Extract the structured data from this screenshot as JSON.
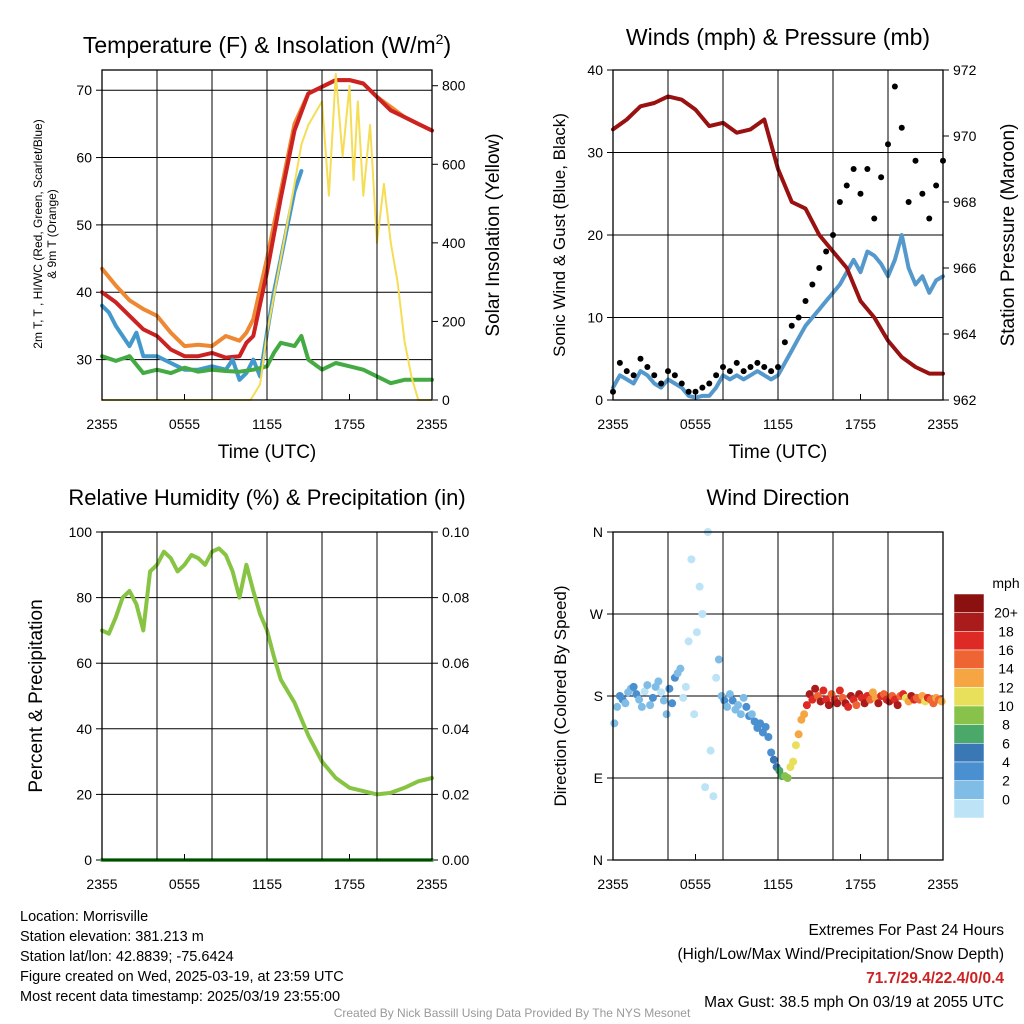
{
  "panels": {
    "temp": {
      "title": "Temperature (F) & Insolation (W/m",
      "title_sup": "2",
      "title_end": ")",
      "ylabel_line1": "2m T, T  , HI/WC (Red, Green, Scarlet/Blue)",
      "ylabel_line1_sub": "d",
      "ylabel_line2": "& 9m T (Orange)",
      "y2label": "Solar Insolation (Yellow)",
      "xlabel": "Time (UTC)"
    },
    "wind": {
      "title": "Winds (mph) & Pressure (mb)",
      "ylabel": "Sonic Wind & Gust (Blue, Black)",
      "y2label": "Station Pressure (Maroon)",
      "xlabel": "Time (UTC)"
    },
    "rh": {
      "title": "Relative Humidity (%) & Precipitation (in)",
      "ylabel": "Percent & Precipitation"
    },
    "dir": {
      "title": "Wind Direction",
      "ylabel": "Direction (Colored By Speed)",
      "legend_title": "mph"
    }
  },
  "chart_data": [
    {
      "id": "temp",
      "type": "line",
      "x_ticks": [
        "2355",
        "0555",
        "1155",
        "1755",
        "2355"
      ],
      "xlim": [
        0,
        24
      ],
      "ylim": [
        24,
        73
      ],
      "y_ticks": [
        30,
        40,
        50,
        60,
        70
      ],
      "y2lim": [
        0,
        840
      ],
      "y2_ticks": [
        0,
        200,
        400,
        600,
        800
      ],
      "series": [
        {
          "color": "#ee8833",
          "axis": "y",
          "x": [
            0,
            1,
            2,
            3,
            4,
            5,
            6,
            7,
            8,
            9,
            10,
            10.5,
            11,
            12,
            13,
            14,
            15,
            16,
            17,
            18,
            19,
            20,
            21,
            22,
            23,
            24
          ],
          "y": [
            43.5,
            41,
            38.8,
            37.5,
            36.5,
            34,
            32,
            32.2,
            32,
            33.5,
            32.8,
            34,
            36,
            45,
            55,
            65,
            69.5,
            70.5,
            71.5,
            71.5,
            71,
            69,
            67.5,
            66,
            65,
            64
          ]
        },
        {
          "color": "#cc2222",
          "axis": "y",
          "x": [
            0,
            1,
            2,
            3,
            4,
            5,
            6,
            7,
            8,
            9,
            10,
            10.5,
            11,
            12,
            13,
            14,
            15,
            16,
            17,
            18,
            19,
            20,
            21,
            22,
            23,
            24
          ],
          "y": [
            40,
            38.5,
            36.5,
            34.5,
            33.5,
            31.5,
            30.5,
            30.5,
            31,
            30.3,
            30.5,
            32.5,
            33.5,
            43,
            54,
            64,
            69.5,
            70.5,
            71.5,
            71.5,
            71,
            69,
            67,
            66,
            65,
            64
          ]
        },
        {
          "color": "#4499cc",
          "axis": "y",
          "x": [
            0,
            0.5,
            1,
            2,
            2.5,
            3,
            4,
            5,
            6,
            7,
            8,
            9,
            9.5,
            10,
            10.5,
            11,
            11.5,
            12,
            12.5,
            13,
            13.5,
            14,
            14.5
          ],
          "y": [
            38,
            37,
            35,
            32,
            34,
            30.5,
            30.5,
            29.5,
            28.5,
            28.5,
            29,
            28.5,
            30,
            27,
            28,
            30,
            27.5,
            34,
            40,
            45,
            50,
            55,
            58
          ]
        },
        {
          "color": "#44aa44",
          "axis": "y",
          "x": [
            0,
            1,
            2,
            3,
            4,
            5,
            6,
            7,
            8,
            9,
            10,
            11,
            12,
            12.5,
            13,
            14,
            14.5,
            15,
            16,
            17,
            18,
            19,
            20,
            21,
            22,
            23,
            24
          ],
          "y": [
            30.5,
            29.8,
            30.5,
            28,
            28.5,
            28,
            28.8,
            28.2,
            28.5,
            28.3,
            28.2,
            28.5,
            29,
            31,
            32.5,
            32,
            33.5,
            30,
            28.5,
            29.5,
            29,
            28.5,
            27.5,
            26.5,
            27,
            27,
            27
          ]
        },
        {
          "color": "#f5dd55",
          "axis": "y2",
          "x": [
            0,
            10.8,
            11.5,
            12,
            13,
            14,
            14.5,
            15,
            16,
            16.5,
            17,
            17.5,
            18,
            18.3,
            18.6,
            19,
            19.5,
            20,
            20.5,
            21,
            21.5,
            22,
            22.5,
            23,
            24
          ],
          "y": [
            0,
            0,
            40,
            170,
            360,
            550,
            650,
            700,
            760,
            520,
            830,
            620,
            800,
            560,
            760,
            520,
            700,
            400,
            550,
            400,
            300,
            150,
            60,
            0,
            0
          ]
        }
      ]
    },
    {
      "id": "wind",
      "type": "line",
      "x_ticks": [
        "2355",
        "0555",
        "1155",
        "1755",
        "2355"
      ],
      "xlim": [
        0,
        24
      ],
      "ylim": [
        0,
        40
      ],
      "y_ticks": [
        0,
        10,
        20,
        30,
        40
      ],
      "y2lim": [
        962,
        972
      ],
      "y2_ticks": [
        962,
        964,
        966,
        968,
        970,
        972
      ],
      "series": [
        {
          "color": "#5599cc",
          "axis": "y",
          "x": [
            0,
            0.5,
            1,
            1.5,
            2,
            2.5,
            3,
            3.5,
            4,
            4.5,
            5,
            5.5,
            6,
            6.5,
            7,
            7.5,
            8,
            8.5,
            9,
            9.5,
            10,
            10.5,
            11,
            11.5,
            12,
            12.5,
            13,
            13.5,
            14,
            14.5,
            15,
            15.5,
            16,
            16.5,
            17,
            17.5,
            18,
            18.5,
            19,
            19.5,
            20,
            20.5,
            21,
            21.5,
            22,
            22.5,
            23,
            23.5,
            24
          ],
          "y": [
            1.5,
            3,
            2.5,
            2,
            3.5,
            3,
            2,
            1.5,
            2.5,
            2,
            1.5,
            0.5,
            0.3,
            0.5,
            0.5,
            1.5,
            3,
            2.5,
            3,
            2.5,
            3,
            3.5,
            3,
            2.5,
            3,
            4.5,
            6,
            7.5,
            9,
            10,
            11,
            12,
            13,
            14,
            15.5,
            17,
            15.5,
            18,
            17.5,
            16.5,
            15,
            17,
            20,
            16,
            14,
            15,
            13,
            14.5,
            15
          ]
        },
        {
          "color": "#000000",
          "axis": "y",
          "marker": "dot",
          "x": [
            0,
            0.5,
            1,
            1.5,
            2,
            2.5,
            3,
            3.5,
            4,
            4.5,
            5,
            5.5,
            6,
            6.5,
            7,
            7.5,
            8,
            8.5,
            9,
            9.5,
            10,
            10.5,
            11,
            11.5,
            12,
            12.5,
            13,
            13.5,
            14,
            14.5,
            15,
            15.5,
            16,
            16.5,
            17,
            17.5,
            18,
            18.5,
            19,
            19.5,
            20,
            20.5,
            21,
            21.5,
            22,
            22.5,
            23,
            23.5,
            24
          ],
          "y": [
            1,
            4.5,
            3.5,
            3,
            5,
            4,
            3,
            2,
            3.5,
            3,
            2,
            1,
            1,
            1.5,
            2,
            3,
            4,
            3.5,
            4.5,
            3.5,
            4,
            4.5,
            4,
            3.5,
            4,
            7,
            9,
            10,
            12,
            14,
            16,
            18,
            20,
            24,
            26,
            28,
            25,
            28,
            22,
            27,
            31,
            38,
            33,
            24,
            29,
            25,
            22,
            26,
            29
          ]
        },
        {
          "color": "#991111",
          "axis": "y2",
          "x": [
            0,
            1,
            2,
            3,
            4,
            5,
            6,
            7,
            8,
            9,
            10,
            11,
            12,
            13,
            14,
            15,
            16,
            17,
            18,
            19,
            20,
            21,
            22,
            23,
            24
          ],
          "y": [
            970.2,
            970.5,
            970.9,
            971,
            971.2,
            971.1,
            970.8,
            970.3,
            970.4,
            970.1,
            970.2,
            970.5,
            969,
            968,
            967.8,
            967,
            966.5,
            966,
            965,
            964.5,
            963.8,
            963.3,
            963,
            962.8,
            962.8
          ]
        }
      ]
    },
    {
      "id": "rh",
      "type": "line",
      "x_ticks": [
        "2355",
        "0555",
        "1155",
        "1755",
        "2355"
      ],
      "xlim": [
        0,
        24
      ],
      "ylim": [
        0,
        100
      ],
      "y_ticks": [
        0,
        20,
        40,
        60,
        80,
        100
      ],
      "y2lim": [
        0,
        0.1
      ],
      "y2_ticks": [
        "0.00",
        "0.02",
        "0.04",
        "0.06",
        "0.08",
        "0.10"
      ],
      "series": [
        {
          "color": "#88c444",
          "axis": "y",
          "x": [
            0,
            0.5,
            1,
            1.5,
            2,
            2.5,
            3,
            3.5,
            4,
            4.5,
            5,
            5.5,
            6,
            6.5,
            7,
            7.5,
            8,
            8.5,
            9,
            9.5,
            10,
            10.5,
            11,
            11.5,
            12,
            12.5,
            13,
            14,
            15,
            16,
            17,
            18,
            19,
            20,
            21,
            22,
            23,
            24
          ],
          "y": [
            70,
            69,
            74,
            80,
            82,
            78,
            70,
            88,
            90,
            94,
            92,
            88,
            90,
            93,
            92,
            90,
            94,
            95,
            93,
            88,
            80,
            90,
            82,
            75,
            70,
            62,
            55,
            48,
            38,
            30,
            25,
            22,
            21,
            20,
            20.5,
            22,
            24,
            25
          ]
        },
        {
          "color": "#44aa44",
          "axis": "y",
          "x": [
            0,
            24
          ],
          "y": [
            0,
            0
          ]
        }
      ]
    },
    {
      "id": "dir",
      "type": "scatter",
      "x_ticks": [
        "2355",
        "0555",
        "1155",
        "1755",
        "2355"
      ],
      "xlim": [
        0,
        24
      ],
      "ylim": [
        0,
        360
      ],
      "y_ticks": [
        "N",
        "E",
        "S",
        "W",
        "N"
      ],
      "color_scale": {
        "labels": [
          "0",
          "2",
          "4",
          "6",
          "8",
          "10",
          "12",
          "14",
          "16",
          "18",
          "20+"
        ],
        "colors": [
          "#bde3f7",
          "#7fbde6",
          "#4a8fcf",
          "#3a78b5",
          "#4aa868",
          "#88c24a",
          "#e8e05a",
          "#f5a642",
          "#ee6433",
          "#dd2a25",
          "#aa1b1b",
          "#8b1010"
        ]
      },
      "x": [
        0.1,
        0.3,
        0.5,
        0.7,
        0.9,
        1.1,
        1.3,
        1.5,
        1.7,
        1.9,
        2.1,
        2.3,
        2.5,
        2.7,
        2.9,
        3.1,
        3.3,
        3.5,
        3.7,
        3.9,
        4.1,
        4.3,
        4.5,
        4.7,
        4.9,
        5.1,
        5.3,
        5.5,
        5.7,
        5.9,
        6.1,
        6.3,
        6.5,
        6.7,
        6.9,
        7.1,
        7.3,
        7.5,
        7.7,
        7.9,
        8.1,
        8.3,
        8.5,
        8.7,
        8.9,
        9.1,
        9.3,
        9.5,
        9.7,
        9.9,
        10.1,
        10.3,
        10.5,
        10.7,
        10.9,
        11.1,
        11.3,
        11.5,
        11.7,
        11.9,
        12.1,
        12.3,
        12.5,
        12.7,
        12.9,
        13.1,
        13.3,
        13.5,
        13.7,
        13.9,
        14.1,
        14.3,
        14.5,
        14.7,
        14.9,
        15.1,
        15.3,
        15.5,
        15.7,
        15.9,
        16.1,
        16.3,
        16.5,
        16.7,
        16.9,
        17.1,
        17.3,
        17.5,
        17.7,
        17.9,
        18.1,
        18.3,
        18.5,
        18.7,
        18.9,
        19.1,
        19.3,
        19.5,
        19.7,
        19.9,
        20.1,
        20.3,
        20.5,
        20.7,
        20.9,
        21.1,
        21.3,
        21.5,
        21.7,
        21.9,
        22.1,
        22.3,
        22.5,
        22.7,
        22.9,
        23.1,
        23.3,
        23.5,
        23.7,
        23.9
      ],
      "y": [
        150,
        168,
        180,
        176,
        172,
        184,
        188,
        190,
        182,
        176,
        168,
        185,
        192,
        170,
        178,
        190,
        196,
        184,
        175,
        160,
        188,
        172,
        200,
        205,
        210,
        178,
        190,
        240,
        330,
        160,
        250,
        300,
        270,
        80,
        360,
        120,
        70,
        200,
        220,
        180,
        175,
        168,
        182,
        175,
        165,
        170,
        160,
        178,
        168,
        158,
        160,
        152,
        145,
        150,
        140,
        146,
        135,
        118,
        110,
        102,
        98,
        92,
        92,
        90,
        102,
        108,
        126,
        138,
        154,
        160,
        170,
        182,
        176,
        188,
        180,
        174,
        186,
        176,
        170,
        182,
        176,
        172,
        186,
        178,
        172,
        168,
        180,
        176,
        170,
        182,
        178,
        172,
        180,
        176,
        184,
        178,
        172,
        180,
        182,
        176,
        174,
        180,
        176,
        170,
        180,
        182,
        178,
        174,
        180,
        176,
        178,
        176,
        180,
        174,
        178,
        176,
        172,
        178,
        176,
        174
      ],
      "speed": [
        2,
        3,
        4,
        4,
        3,
        2,
        3,
        4,
        5,
        3,
        2,
        1,
        2,
        3,
        4,
        3,
        2,
        1,
        2,
        3,
        4,
        5,
        4,
        3,
        2,
        1,
        1,
        0,
        0,
        0,
        0,
        0,
        1,
        0,
        0,
        0,
        0,
        1,
        2,
        3,
        4,
        3,
        3,
        4,
        3,
        2,
        3,
        3,
        4,
        4,
        3,
        4,
        4,
        5,
        4,
        5,
        4,
        5,
        6,
        7,
        8,
        9,
        10,
        11,
        12,
        13,
        12,
        14,
        15,
        14,
        18,
        20,
        19,
        20,
        17,
        20,
        18,
        19,
        20,
        16,
        18,
        20,
        19,
        17,
        20,
        18,
        20,
        19,
        16,
        20,
        18,
        20,
        19,
        17,
        15,
        14,
        20,
        18,
        17,
        19,
        20,
        16,
        18,
        20,
        17,
        19,
        12,
        14,
        20,
        18,
        17,
        16,
        15,
        12,
        18,
        16,
        17,
        14,
        16,
        15
      ]
    }
  ],
  "info": {
    "location": "Location: Morrisville",
    "elevation": "Station elevation: 381.213 m",
    "latlon": "Station lat/lon: 42.8839; -75.6424",
    "created": "Figure created on Wed, 2025-03-19, at 23:59 UTC",
    "recent": "Most recent data timestamp: 2025/03/19 23:55:00"
  },
  "extremes": {
    "title": "Extremes For Past 24 Hours",
    "subtitle": "(High/Low/Max Wind/Precipitation/Snow Depth)",
    "values": "71.7/29.4/22.4/0/0.4",
    "gust": "Max Gust: 38.5 mph On 03/19 at 2055 UTC"
  },
  "credit": "Created By Nick Bassill Using Data Provided By The NYS Mesonet"
}
